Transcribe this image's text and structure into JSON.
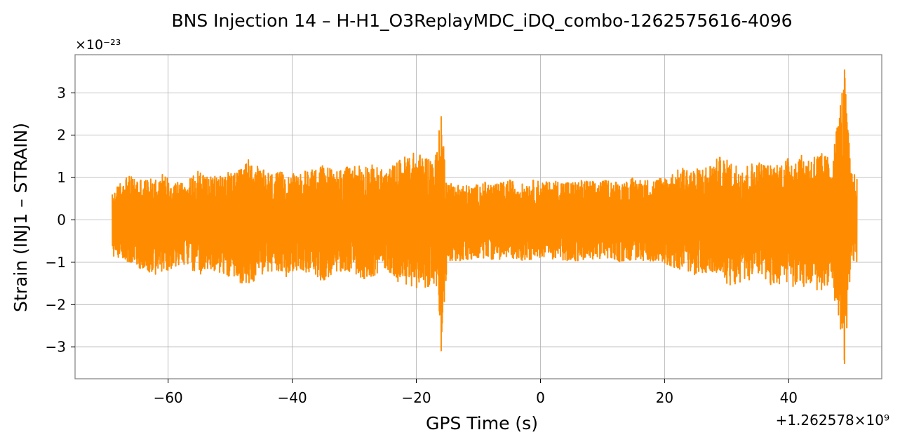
{
  "chart_data": {
    "type": "line",
    "title": "BNS Injection 14 – H-H1_O3ReplayMDC_iDQ_combo-1262575616-4096",
    "xlabel": "GPS Time (s)",
    "ylabel": "Strain (INJ1 – STRAIN)",
    "y_exponent_label": "×10⁻²³",
    "x_offset_label": "+1.262578×10⁹",
    "xlim": [
      -75,
      55
    ],
    "ylim": [
      -3.75,
      3.9
    ],
    "x_ticks": [
      -60,
      -40,
      -20,
      0,
      20,
      40
    ],
    "x_tick_labels": [
      "−60",
      "−40",
      "−20",
      "0",
      "20",
      "40"
    ],
    "y_ticks": [
      -3,
      -2,
      -1,
      0,
      1,
      2,
      3
    ],
    "y_tick_labels": [
      "−3",
      "−2",
      "−1",
      "0",
      "1",
      "2",
      "3"
    ],
    "grid": true,
    "line_color": "#ff8c00",
    "series": [
      {
        "x_range": [
          -69,
          51
        ],
        "envelope": [
          [
            -69,
            0.62,
            -0.85
          ],
          [
            -67,
            1.05,
            -0.95
          ],
          [
            -65,
            1.0,
            -1.1
          ],
          [
            -63,
            0.95,
            -1.3
          ],
          [
            -61,
            1.1,
            -1.3
          ],
          [
            -59,
            0.95,
            -1.1
          ],
          [
            -57,
            0.9,
            -1.05
          ],
          [
            -55,
            1.2,
            -1.35
          ],
          [
            -53,
            1.0,
            -1.2
          ],
          [
            -51,
            1.15,
            -1.3
          ],
          [
            -49,
            1.1,
            -1.45
          ],
          [
            -47,
            1.45,
            -1.55
          ],
          [
            -45,
            1.2,
            -1.3
          ],
          [
            -43,
            1.1,
            -1.25
          ],
          [
            -41,
            1.15,
            -1.35
          ],
          [
            -39,
            1.05,
            -1.15
          ],
          [
            -37,
            1.25,
            -1.3
          ],
          [
            -35,
            1.3,
            -1.45
          ],
          [
            -33,
            1.2,
            -1.3
          ],
          [
            -31,
            1.25,
            -1.2
          ],
          [
            -29,
            1.35,
            -1.4
          ],
          [
            -27,
            1.3,
            -1.35
          ],
          [
            -25,
            1.15,
            -1.15
          ],
          [
            -23,
            1.4,
            -1.45
          ],
          [
            -21,
            1.6,
            -1.6
          ],
          [
            -19,
            1.55,
            -1.6
          ],
          [
            -17,
            1.45,
            -1.55
          ],
          [
            -16,
            2.45,
            -3.1
          ],
          [
            -15,
            0.9,
            -0.95
          ],
          [
            -13,
            0.85,
            -1.0
          ],
          [
            -11,
            0.8,
            -0.95
          ],
          [
            -9,
            0.9,
            -0.9
          ],
          [
            -7,
            0.85,
            -0.95
          ],
          [
            -5,
            0.95,
            -0.9
          ],
          [
            -3,
            0.85,
            -0.95
          ],
          [
            -1,
            0.95,
            -0.95
          ],
          [
            1,
            0.9,
            -0.85
          ],
          [
            3,
            0.95,
            -1.0
          ],
          [
            5,
            0.9,
            -0.95
          ],
          [
            7,
            0.95,
            -1.0
          ],
          [
            9,
            0.9,
            -0.9
          ],
          [
            11,
            0.95,
            -0.95
          ],
          [
            13,
            0.9,
            -1.0
          ],
          [
            15,
            1.0,
            -0.95
          ],
          [
            17,
            0.95,
            -1.0
          ],
          [
            19,
            1.0,
            -0.95
          ],
          [
            21,
            1.1,
            -1.1
          ],
          [
            23,
            1.25,
            -1.2
          ],
          [
            25,
            1.2,
            -1.3
          ],
          [
            27,
            1.3,
            -1.25
          ],
          [
            29,
            1.5,
            -1.4
          ],
          [
            31,
            1.35,
            -1.6
          ],
          [
            33,
            1.3,
            -1.45
          ],
          [
            35,
            1.4,
            -1.35
          ],
          [
            37,
            1.3,
            -1.55
          ],
          [
            39,
            1.4,
            -1.5
          ],
          [
            41,
            1.55,
            -1.6
          ],
          [
            43,
            1.5,
            -1.6
          ],
          [
            45,
            1.6,
            -1.7
          ],
          [
            47,
            1.45,
            -1.5
          ],
          [
            49,
            3.55,
            -3.4
          ],
          [
            50,
            1.2,
            -1.1
          ],
          [
            51,
            1.0,
            -1.0
          ]
        ]
      }
    ]
  }
}
